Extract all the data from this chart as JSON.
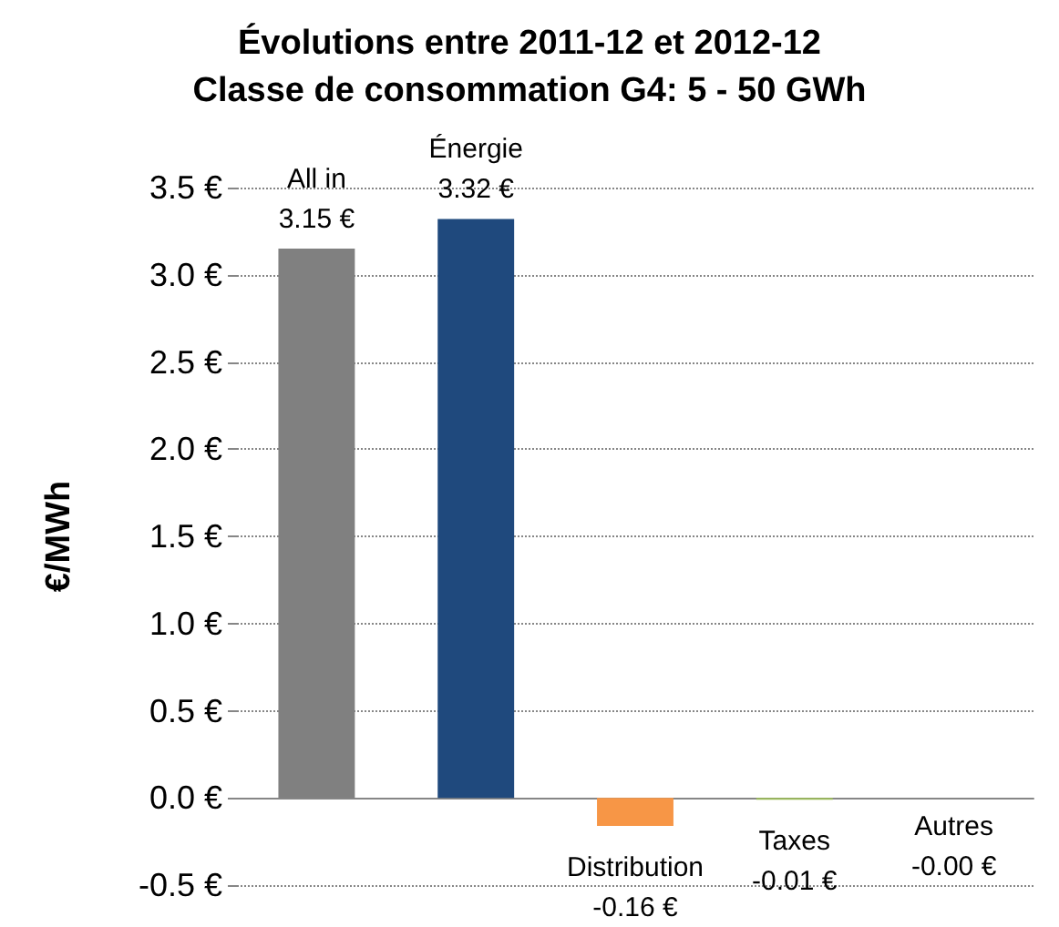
{
  "chart_data": {
    "type": "bar",
    "title": "Évolutions entre 2011-12 et 2012-12\nClasse de consommation G4: 5 - 50 GWh",
    "ylabel": "€/MWh",
    "categories": [
      "All in",
      "Énergie",
      "Distribution",
      "Taxes",
      "Autres"
    ],
    "values": [
      3.15,
      3.32,
      -0.16,
      -0.01,
      0
    ],
    "colors": [
      "#808080",
      "#1f497d",
      "#f79646",
      "#9bbb59",
      "#8064a2"
    ],
    "value_labels": [
      "3.15 €",
      "3.32 €",
      "-0.16 €",
      "-0.01 €",
      "-0.00 €"
    ],
    "ylim": [
      -0.5,
      3.5
    ],
    "yticks": [
      {
        "value": -0.5,
        "label": "-0.5 €"
      },
      {
        "value": 0,
        "label": "0.0 €"
      },
      {
        "value": 0.5,
        "label": "0.5 €"
      },
      {
        "value": 1,
        "label": "1.0 €"
      },
      {
        "value": 1.5,
        "label": "1.5 €"
      },
      {
        "value": 2,
        "label": "2.0 €"
      },
      {
        "value": 2.5,
        "label": "2.5 €"
      },
      {
        "value": 3,
        "label": "3.0 €"
      },
      {
        "value": 3.5,
        "label": "3.5 €"
      }
    ],
    "grid": "y",
    "tick_labels": "y"
  }
}
